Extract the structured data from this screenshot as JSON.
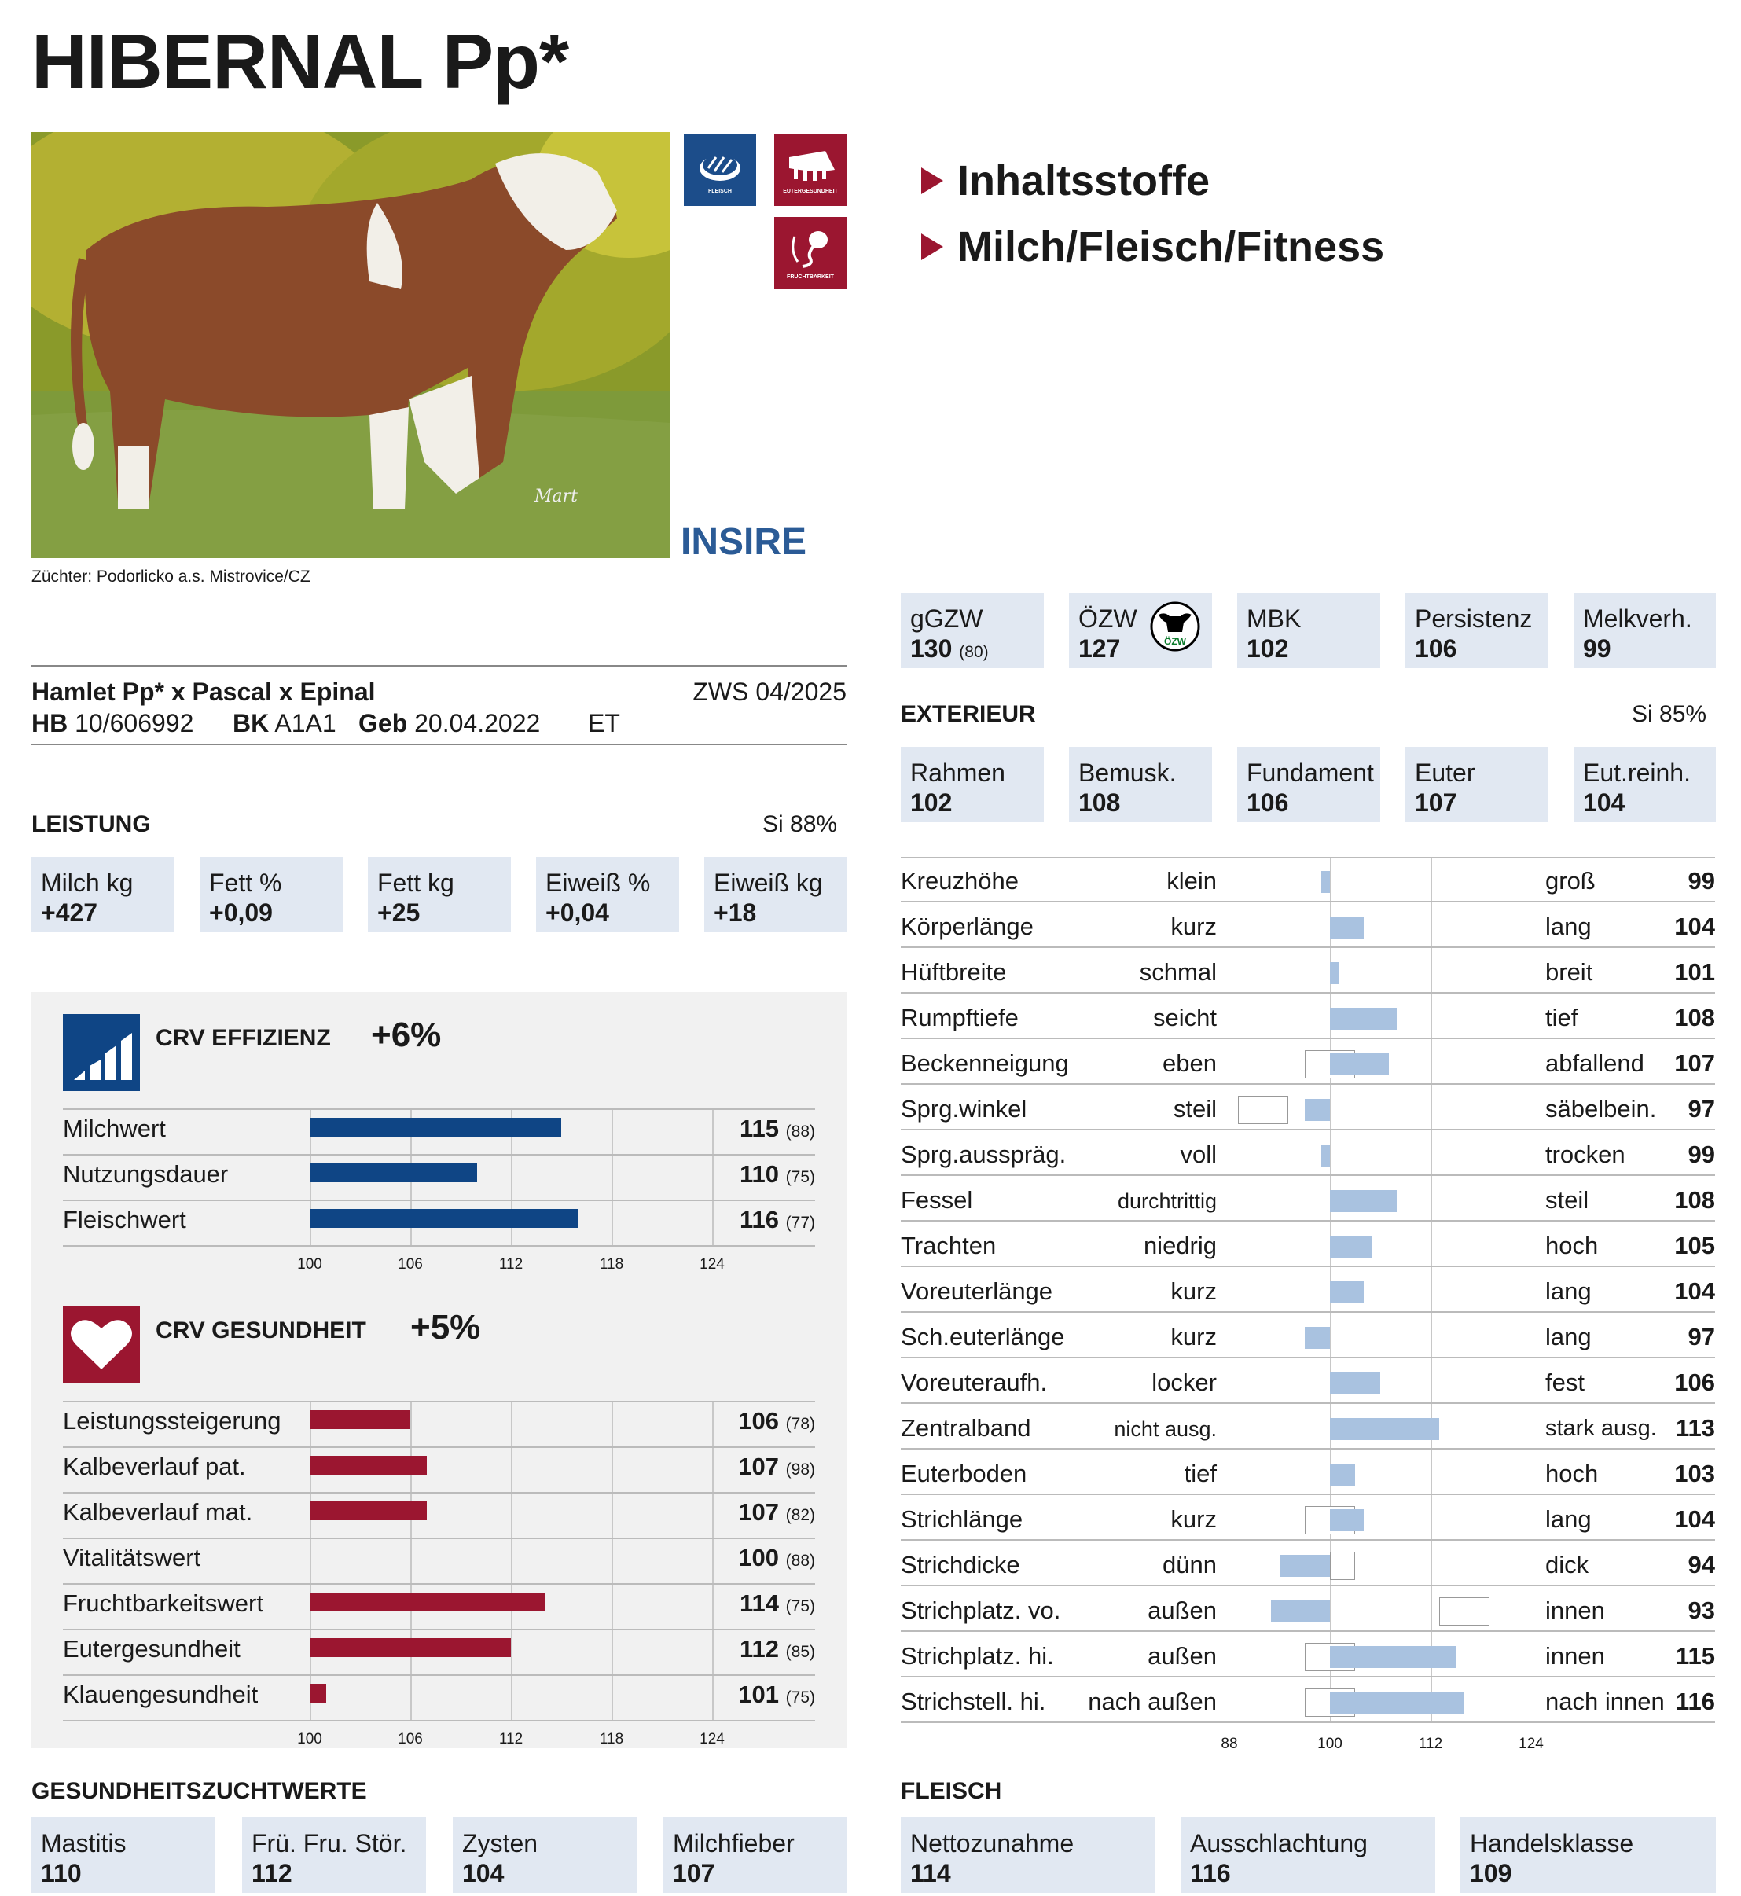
{
  "title": "HIBERNAL Pp*",
  "badges": [
    {
      "label": "FLEISCH",
      "icon": "steak-icon"
    },
    {
      "label": "EUTERGESUNDHEIT",
      "icon": "udder-icon"
    },
    {
      "label": "FRUCHTBARKEIT",
      "icon": "sperm-icon"
    }
  ],
  "photo": {
    "watermark": "Mart"
  },
  "brand": "INSIRE",
  "breeder": "Züchter: Podorlicko a.s. Mistrovice/CZ",
  "bullets": [
    "Inhaltsstoffe",
    "Milch/Fleisch/Fitness"
  ],
  "pedigree": {
    "line": "Hamlet Pp* x Pascal x Epinal",
    "zws": "ZWS 04/2025",
    "hb_label": "HB",
    "hb": "10/606992",
    "bk_label": "BK",
    "bk": "A1A1",
    "geb_label": "Geb",
    "geb": "20.04.2022",
    "et": "ET"
  },
  "top_indices": [
    {
      "label": "gGZW",
      "value": "130",
      "sub": "(80)"
    },
    {
      "label": "ÖZW",
      "value": "127",
      "sub": "",
      "logo": "ÖZW"
    },
    {
      "label": "MBK",
      "value": "102",
      "sub": ""
    },
    {
      "label": "Persistenz",
      "value": "106",
      "sub": ""
    },
    {
      "label": "Melkverh.",
      "value": "99",
      "sub": ""
    }
  ],
  "leistung": {
    "title": "LEISTUNG",
    "si": "Si 88%",
    "items": [
      {
        "label": "Milch kg",
        "value": "+427"
      },
      {
        "label": "Fett %",
        "value": "+0,09"
      },
      {
        "label": "Fett kg",
        "value": "+25"
      },
      {
        "label": "Eiweiß %",
        "value": "+0,04"
      },
      {
        "label": "Eiweiß kg",
        "value": "+18"
      }
    ]
  },
  "exterieur": {
    "title": "EXTERIEUR",
    "si": "Si 85%",
    "items": [
      {
        "label": "Rahmen",
        "value": "102"
      },
      {
        "label": "Bemusk.",
        "value": "108"
      },
      {
        "label": "Fundament",
        "value": "106"
      },
      {
        "label": "Euter",
        "value": "107"
      },
      {
        "label": "Eut.reinh.",
        "value": "104"
      }
    ]
  },
  "crv_effizienz": {
    "title": "CRV EFFIZIENZ",
    "delta": "+6%",
    "rows": [
      {
        "label": "Milchwert",
        "value": 115,
        "si": "(88)"
      },
      {
        "label": "Nutzungsdauer",
        "value": 110,
        "si": "(75)"
      },
      {
        "label": "Fleischwert",
        "value": 116,
        "si": "(77)"
      }
    ],
    "ticks": [
      100,
      106,
      112,
      118,
      124
    ]
  },
  "crv_gesundheit": {
    "title": "CRV GESUNDHEIT",
    "delta": "+5%",
    "rows": [
      {
        "label": "Leistungssteigerung",
        "value": 106,
        "si": "(78)"
      },
      {
        "label": "Kalbeverlauf pat.",
        "value": 107,
        "si": "(98)"
      },
      {
        "label": "Kalbeverlauf mat.",
        "value": 107,
        "si": "(82)"
      },
      {
        "label": "Vitalitätswert",
        "value": 100,
        "si": "(88)"
      },
      {
        "label": "Fruchtbarkeitswert",
        "value": 114,
        "si": "(75)"
      },
      {
        "label": "Eutergesundheit",
        "value": 112,
        "si": "(85)"
      },
      {
        "label": "Klauengesundheit",
        "value": 101,
        "si": "(75)"
      }
    ],
    "ticks": [
      100,
      106,
      112,
      118,
      124
    ]
  },
  "linear": {
    "ticks": [
      88,
      100,
      112,
      124
    ],
    "rows": [
      {
        "label": "Kreuzhöhe",
        "lo": "klein",
        "hi": "groß",
        "value": 99
      },
      {
        "label": "Körperlänge",
        "lo": "kurz",
        "hi": "lang",
        "value": 104
      },
      {
        "label": "Hüftbreite",
        "lo": "schmal",
        "hi": "breit",
        "value": 101
      },
      {
        "label": "Rumpftiefe",
        "lo": "seicht",
        "hi": "tief",
        "value": 108
      },
      {
        "label": "Beckenneigung",
        "lo": "eben",
        "hi": "abfallend",
        "value": 107,
        "opt": [
          97,
          103
        ]
      },
      {
        "label": "Sprg.winkel",
        "lo": "steil",
        "hi": "säbelbein.",
        "value": 97,
        "opt": [
          89,
          95
        ]
      },
      {
        "label": "Sprg.ausspräg.",
        "lo": "voll",
        "hi": "trocken",
        "value": 99
      },
      {
        "label": "Fessel",
        "lo": "durchtrittig",
        "hi": "steil",
        "value": 108
      },
      {
        "label": "Trachten",
        "lo": "niedrig",
        "hi": "hoch",
        "value": 105
      },
      {
        "label": "Voreuterlänge",
        "lo": "kurz",
        "hi": "lang",
        "value": 104
      },
      {
        "label": "Sch.euterlänge",
        "lo": "kurz",
        "hi": "lang",
        "value": 97
      },
      {
        "label": "Voreuteraufh.",
        "lo": "locker",
        "hi": "fest",
        "value": 106
      },
      {
        "label": "Zentralband",
        "lo": "nicht ausg.",
        "hi": "stark ausg.",
        "value": 113
      },
      {
        "label": "Euterboden",
        "lo": "tief",
        "hi": "hoch",
        "value": 103
      },
      {
        "label": "Strichlänge",
        "lo": "kurz",
        "hi": "lang",
        "value": 104,
        "opt": [
          97,
          103
        ]
      },
      {
        "label": "Strichdicke",
        "lo": "dünn",
        "hi": "dick",
        "value": 94,
        "opt": [
          100,
          103
        ]
      },
      {
        "label": "Strichplatz. vo.",
        "lo": "außen",
        "hi": "innen",
        "value": 93,
        "opt": [
          113,
          119
        ]
      },
      {
        "label": "Strichplatz. hi.",
        "lo": "außen",
        "hi": "innen",
        "value": 115,
        "opt": [
          97,
          103
        ]
      },
      {
        "label": "Strichstell. hi.",
        "lo": "nach außen",
        "hi": "nach innen",
        "value": 116,
        "opt": [
          97,
          103
        ]
      }
    ]
  },
  "gesundheitszuchtwerte": {
    "title": "GESUNDHEITSZUCHTWERTE",
    "items": [
      {
        "label": "Mastitis",
        "value": "110"
      },
      {
        "label": "Frü. Fru. Stör.",
        "value": "112"
      },
      {
        "label": "Zysten",
        "value": "104"
      },
      {
        "label": "Milchfieber",
        "value": "107"
      }
    ]
  },
  "fleisch": {
    "title": "FLEISCH",
    "items": [
      {
        "label": "Nettozunahme",
        "value": "114"
      },
      {
        "label": "Ausschlachtung",
        "value": "116"
      },
      {
        "label": "Handelsklasse",
        "value": "109"
      }
    ]
  },
  "colors": {
    "blue": "#0f4585",
    "red": "#9b1630",
    "lightblue": "#a9c2e0",
    "boxbg": "#e1e8f2",
    "panel": "#f1f1f1"
  }
}
